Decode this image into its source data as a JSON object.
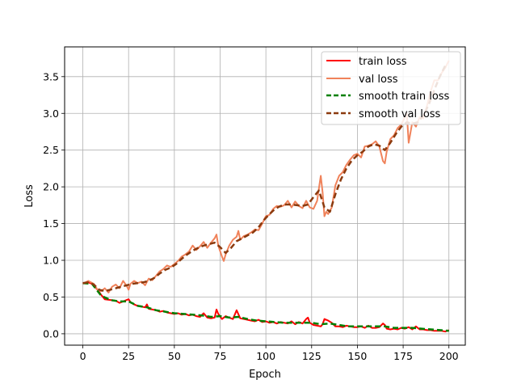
{
  "chart_data": {
    "type": "line",
    "title": "",
    "xlabel": "Epoch",
    "ylabel": "Loss",
    "xlim": [
      -9.95,
      208.95
    ],
    "ylim": [
      -0.155,
      3.905
    ],
    "xticks": [
      0,
      25,
      50,
      75,
      100,
      125,
      150,
      175,
      200
    ],
    "xtick_labels": [
      "0",
      "25",
      "50",
      "75",
      "100",
      "125",
      "150",
      "175",
      "200"
    ],
    "yticks": [
      0.0,
      0.5,
      1.0,
      1.5,
      2.0,
      2.5,
      3.0,
      3.5
    ],
    "ytick_labels": [
      "0.0",
      "0.5",
      "1.0",
      "1.5",
      "2.0",
      "2.5",
      "3.0",
      "3.5"
    ],
    "grid": true,
    "legend_position": "top-right",
    "series": [
      {
        "name": "train loss",
        "color": "#ff0000",
        "dash": "solid",
        "x": [
          0,
          3,
          5,
          8,
          10,
          12,
          15,
          18,
          20,
          22,
          24,
          25,
          26,
          28,
          30,
          32,
          34,
          35,
          36,
          38,
          40,
          42,
          44,
          46,
          48,
          50,
          52,
          54,
          56,
          58,
          60,
          62,
          64,
          66,
          68,
          70,
          72,
          73,
          74,
          76,
          78,
          80,
          82,
          83,
          84,
          86,
          88,
          90,
          92,
          94,
          96,
          98,
          100,
          102,
          104,
          106,
          108,
          110,
          112,
          114,
          116,
          118,
          120,
          122,
          123,
          124,
          126,
          128,
          130,
          131,
          132,
          134,
          136,
          138,
          140,
          142,
          144,
          146,
          148,
          150,
          152,
          154,
          156,
          158,
          160,
          162,
          164,
          165,
          166,
          168,
          170,
          172,
          174,
          176,
          178,
          180,
          182,
          184,
          186,
          188,
          190,
          192,
          194,
          196,
          198,
          200
        ],
        "y": [
          0.69,
          0.7,
          0.68,
          0.6,
          0.53,
          0.47,
          0.46,
          0.45,
          0.42,
          0.44,
          0.46,
          0.47,
          0.43,
          0.4,
          0.38,
          0.37,
          0.36,
          0.4,
          0.34,
          0.33,
          0.32,
          0.3,
          0.31,
          0.29,
          0.28,
          0.27,
          0.28,
          0.26,
          0.27,
          0.25,
          0.26,
          0.24,
          0.23,
          0.28,
          0.22,
          0.21,
          0.22,
          0.33,
          0.27,
          0.2,
          0.24,
          0.22,
          0.2,
          0.26,
          0.32,
          0.21,
          0.2,
          0.19,
          0.18,
          0.17,
          0.19,
          0.16,
          0.17,
          0.15,
          0.16,
          0.14,
          0.16,
          0.15,
          0.14,
          0.17,
          0.13,
          0.16,
          0.14,
          0.2,
          0.22,
          0.15,
          0.12,
          0.11,
          0.1,
          0.13,
          0.2,
          0.18,
          0.15,
          0.1,
          0.1,
          0.09,
          0.11,
          0.1,
          0.09,
          0.09,
          0.1,
          0.08,
          0.11,
          0.08,
          0.08,
          0.09,
          0.14,
          0.12,
          0.07,
          0.06,
          0.07,
          0.06,
          0.08,
          0.07,
          0.09,
          0.06,
          0.1,
          0.06,
          0.06,
          0.05,
          0.05,
          0.04,
          0.04,
          0.04,
          0.03,
          0.05
        ]
      },
      {
        "name": "val loss",
        "color": "#f0825a",
        "dash": "solid",
        "x": [
          0,
          3,
          6,
          8,
          10,
          12,
          14,
          16,
          18,
          20,
          22,
          24,
          25,
          26,
          28,
          30,
          32,
          34,
          36,
          38,
          40,
          42,
          44,
          46,
          48,
          50,
          52,
          54,
          56,
          58,
          60,
          62,
          64,
          66,
          68,
          70,
          72,
          73,
          74,
          76,
          77,
          78,
          80,
          82,
          84,
          85,
          86,
          88,
          90,
          92,
          94,
          96,
          98,
          100,
          102,
          104,
          106,
          108,
          110,
          112,
          114,
          116,
          118,
          120,
          122,
          124,
          126,
          128,
          129,
          130,
          131,
          132,
          133,
          134,
          136,
          138,
          140,
          142,
          144,
          146,
          148,
          150,
          152,
          154,
          156,
          158,
          160,
          162,
          164,
          165,
          166,
          168,
          170,
          172,
          174,
          176,
          177,
          178,
          180,
          182,
          184,
          186,
          188,
          190,
          192,
          194,
          196,
          198,
          200
        ],
        "y": [
          0.68,
          0.72,
          0.68,
          0.6,
          0.58,
          0.62,
          0.56,
          0.64,
          0.67,
          0.62,
          0.72,
          0.65,
          0.6,
          0.68,
          0.72,
          0.69,
          0.71,
          0.66,
          0.75,
          0.73,
          0.79,
          0.85,
          0.88,
          0.93,
          0.91,
          0.95,
          0.99,
          1.05,
          1.08,
          1.12,
          1.2,
          1.14,
          1.19,
          1.25,
          1.17,
          1.24,
          1.3,
          1.35,
          1.2,
          1.05,
          0.99,
          1.08,
          1.2,
          1.28,
          1.32,
          1.4,
          1.28,
          1.33,
          1.35,
          1.38,
          1.42,
          1.41,
          1.5,
          1.6,
          1.62,
          1.7,
          1.74,
          1.73,
          1.75,
          1.81,
          1.72,
          1.8,
          1.74,
          1.71,
          1.81,
          1.72,
          1.7,
          1.81,
          1.98,
          2.15,
          1.92,
          1.6,
          1.66,
          1.63,
          1.72,
          2.02,
          2.15,
          2.2,
          2.3,
          2.37,
          2.43,
          2.45,
          2.4,
          2.55,
          2.56,
          2.58,
          2.62,
          2.55,
          2.35,
          2.32,
          2.48,
          2.65,
          2.7,
          2.8,
          2.85,
          2.95,
          3.0,
          2.6,
          2.88,
          2.82,
          2.95,
          2.93,
          3.1,
          3.3,
          3.45,
          3.45,
          3.55,
          3.62,
          3.72
        ]
      },
      {
        "name": "smooth train loss",
        "color": "#008000",
        "dash": "dashed",
        "x": [
          0,
          5,
          10,
          15,
          20,
          25,
          30,
          35,
          40,
          45,
          50,
          55,
          60,
          65,
          70,
          75,
          80,
          85,
          90,
          95,
          100,
          105,
          110,
          115,
          120,
          125,
          130,
          135,
          140,
          145,
          150,
          155,
          160,
          165,
          170,
          175,
          180,
          185,
          190,
          195,
          200
        ],
        "y": [
          0.69,
          0.68,
          0.52,
          0.46,
          0.44,
          0.44,
          0.38,
          0.36,
          0.32,
          0.3,
          0.28,
          0.27,
          0.26,
          0.25,
          0.23,
          0.24,
          0.22,
          0.23,
          0.2,
          0.18,
          0.17,
          0.16,
          0.15,
          0.15,
          0.15,
          0.15,
          0.13,
          0.14,
          0.12,
          0.1,
          0.1,
          0.1,
          0.1,
          0.1,
          0.08,
          0.08,
          0.08,
          0.07,
          0.06,
          0.05,
          0.04
        ]
      },
      {
        "name": "smooth val loss",
        "color": "#8b3a0e",
        "dash": "dashed",
        "x": [
          0,
          3,
          6,
          9,
          12,
          15,
          18,
          21,
          24,
          27,
          30,
          33,
          36,
          39,
          42,
          45,
          48,
          51,
          54,
          57,
          60,
          63,
          66,
          69,
          72,
          75,
          78,
          81,
          84,
          87,
          90,
          93,
          96,
          99,
          102,
          105,
          108,
          111,
          114,
          117,
          120,
          123,
          126,
          129,
          132,
          135,
          138,
          141,
          144,
          147,
          150,
          153,
          156,
          159,
          162,
          165,
          168,
          171,
          174,
          177,
          180,
          183,
          186,
          189,
          192,
          195,
          198
        ],
        "y": [
          0.69,
          0.7,
          0.67,
          0.6,
          0.58,
          0.6,
          0.62,
          0.64,
          0.66,
          0.68,
          0.69,
          0.7,
          0.72,
          0.76,
          0.82,
          0.87,
          0.9,
          0.95,
          1.02,
          1.08,
          1.13,
          1.17,
          1.2,
          1.22,
          1.24,
          1.18,
          1.1,
          1.17,
          1.26,
          1.3,
          1.34,
          1.38,
          1.45,
          1.55,
          1.63,
          1.7,
          1.74,
          1.76,
          1.76,
          1.75,
          1.74,
          1.76,
          1.86,
          1.95,
          1.72,
          1.66,
          1.9,
          2.1,
          2.25,
          2.36,
          2.43,
          2.48,
          2.55,
          2.58,
          2.56,
          2.5,
          2.6,
          2.72,
          2.82,
          2.88,
          2.86,
          2.88,
          2.97,
          3.12,
          3.32,
          3.5,
          3.65
        ]
      }
    ]
  }
}
